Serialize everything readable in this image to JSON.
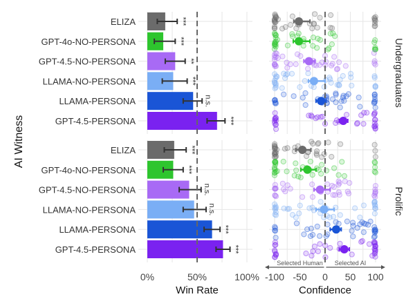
{
  "chart_data": [
    {
      "type": "bar",
      "title": "",
      "xlabel": "Win Rate",
      "ylabel": "AI Witness",
      "xlim": [
        0,
        100
      ],
      "x_ticks": [
        "0%",
        "50%",
        "100%"
      ],
      "reference_line": 50,
      "grid": true,
      "categories": [
        "ELIZA",
        "GPT-4o-NO-PERSONA",
        "GPT-4.5-NO-PERSONA",
        "LLAMA-NO-PERSONA",
        "LLAMA-PERSONA",
        "GPT-4.5-PERSONA"
      ],
      "colors": [
        "#6b6b6b",
        "#2ec52e",
        "#a86af5",
        "#7aaef5",
        "#1a55d6",
        "#7a22f0"
      ],
      "panels": [
        {
          "name": "Undergraduates",
          "values": [
            18,
            16,
            28,
            26,
            46,
            70
          ],
          "ci_low": [
            10,
            7,
            18,
            15,
            36,
            60
          ],
          "ci_high": [
            30,
            28,
            38,
            40,
            55,
            78
          ],
          "significance": [
            "***",
            "***",
            "**",
            "***",
            "n.s.",
            "***"
          ]
        },
        {
          "name": "Prolific",
          "values": [
            27,
            26,
            42,
            47,
            65,
            76
          ],
          "ci_low": [
            17,
            16,
            32,
            36,
            57,
            69
          ],
          "ci_high": [
            39,
            36,
            54,
            59,
            73,
            83
          ],
          "significance": [
            "***",
            "***",
            "n.s.",
            "n.s.",
            "***",
            "***"
          ]
        }
      ]
    },
    {
      "type": "scatter",
      "title": "",
      "xlabel": "Confidence",
      "xlim": [
        -100,
        100
      ],
      "x_ticks": [
        "-100",
        "-50",
        "0",
        "50",
        "100"
      ],
      "reference_line": 0,
      "grid": true,
      "annotations": [
        "Selected Human",
        "Selected AI"
      ],
      "facet_labels": [
        "Undergraduates",
        "Prolific"
      ],
      "categories": [
        "ELIZA",
        "GPT-4o-NO-PERSONA",
        "GPT-4.5-NO-PERSONA",
        "LLAMA-NO-PERSONA",
        "LLAMA-PERSONA",
        "GPT-4.5-PERSONA"
      ],
      "panels": [
        {
          "name": "Undergraduates",
          "means": [
            -52,
            -52,
            -32,
            -22,
            -8,
            36
          ],
          "ci_low": [
            -62,
            -63,
            -42,
            -33,
            -18,
            28
          ],
          "ci_high": [
            -30,
            -30,
            -20,
            0,
            2,
            45
          ]
        },
        {
          "name": "Prolific",
          "means": [
            -45,
            -35,
            -10,
            -2,
            22,
            38
          ],
          "ci_low": [
            -58,
            -48,
            -22,
            -18,
            10,
            28
          ],
          "ci_high": [
            -28,
            -18,
            10,
            18,
            32,
            48
          ]
        }
      ]
    }
  ]
}
